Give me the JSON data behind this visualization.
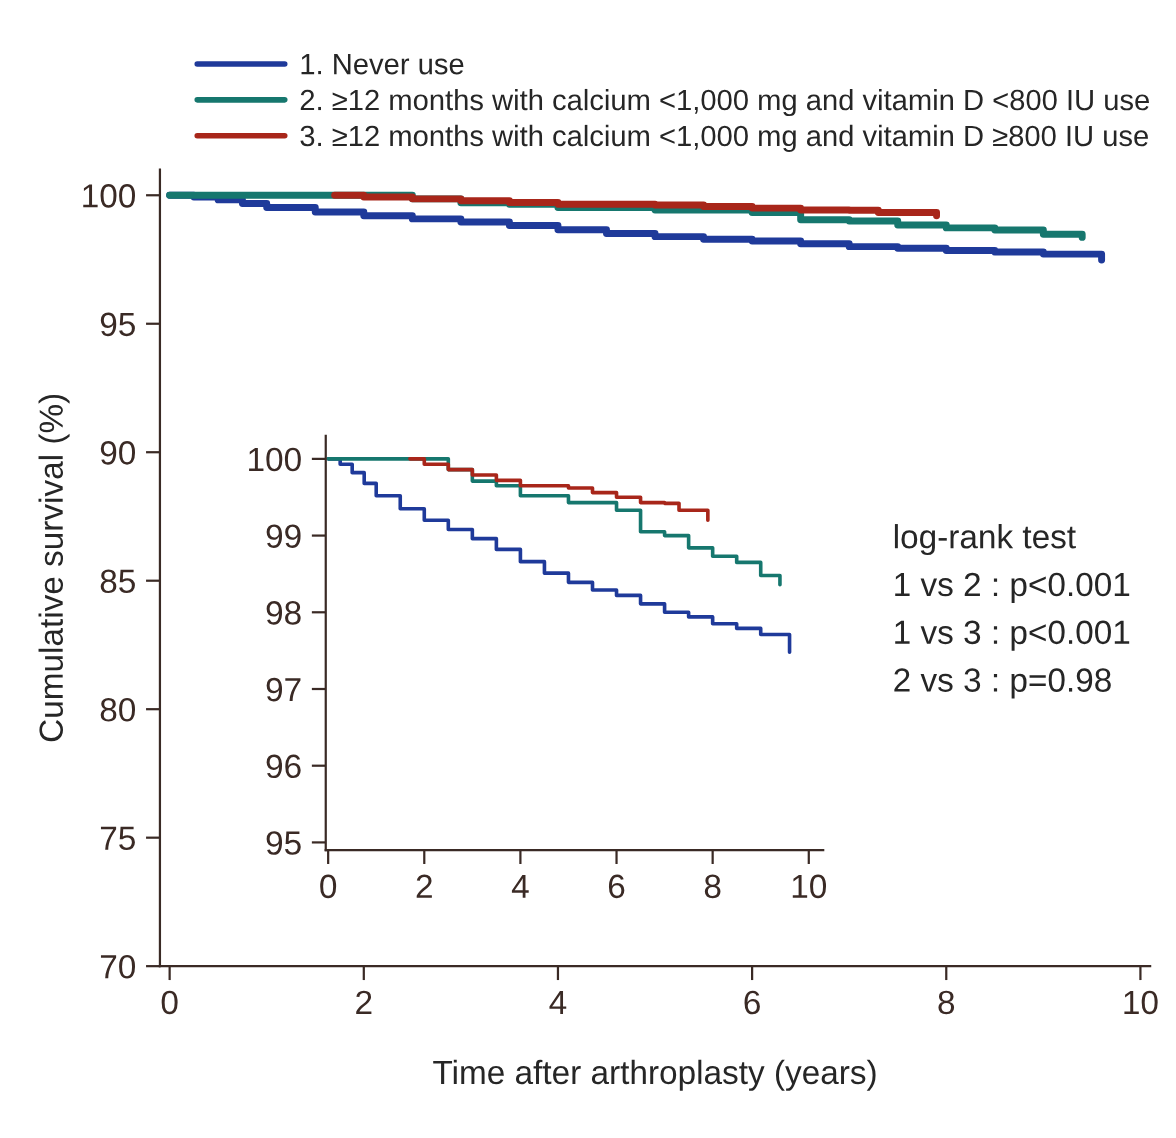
{
  "chart_data": [
    {
      "type": "step",
      "xlabel": "Time after arthroplasty (years)",
      "ylabel": "Cumulative survival (%)",
      "xlim": [
        -0.1,
        10.1
      ],
      "ylim": [
        70,
        101
      ],
      "xticks": [
        0,
        2,
        4,
        6,
        8,
        10
      ],
      "yticks": [
        70,
        75,
        80,
        85,
        90,
        95,
        100
      ],
      "grid": false,
      "legend": "top",
      "marker": "none",
      "line_style": "solid",
      "annotations": [
        "log-rank test",
        "1 vs 2 : p<0.001",
        "1 vs 3 : p<0.001",
        "2 vs 3 : p=0.98"
      ],
      "series": [
        {
          "name": "1. Never use",
          "color": "#1f3a9a",
          "x": [
            0,
            0.25,
            0.5,
            0.75,
            1,
            1.5,
            2,
            2.5,
            3,
            3.5,
            4,
            4.5,
            5,
            5.5,
            6,
            6.5,
            7,
            7.5,
            8,
            8.5,
            9,
            9.6
          ],
          "values": [
            100,
            99.93,
            99.82,
            99.68,
            99.52,
            99.35,
            99.2,
            99.08,
            98.96,
            98.82,
            98.66,
            98.51,
            98.39,
            98.29,
            98.22,
            98.11,
            98.0,
            97.94,
            97.85,
            97.79,
            97.71,
            97.48
          ]
        },
        {
          "name": "2. ≥12 months with calcium <1,000 mg and vitamin D <800 IU use",
          "color": "#16776e",
          "x": [
            0,
            2,
            2.5,
            3,
            3.5,
            4,
            5,
            6,
            6.5,
            7,
            7.5,
            8,
            8.5,
            9,
            9.4
          ],
          "values": [
            100,
            100,
            99.86,
            99.71,
            99.65,
            99.52,
            99.43,
            99.33,
            99.05,
            99.0,
            98.84,
            98.73,
            98.65,
            98.48,
            98.36
          ]
        },
        {
          "name": "3. ≥12 months with calcium <1,000 mg and vitamin D ≥800 IU use",
          "color": "#a8261a",
          "x": [
            1.7,
            2,
            2.5,
            3,
            3.5,
            4,
            5,
            5.5,
            6,
            6.5,
            7,
            7.3,
            7.9
          ],
          "values": [
            100,
            99.93,
            99.86,
            99.79,
            99.72,
            99.65,
            99.62,
            99.56,
            99.5,
            99.43,
            99.42,
            99.33,
            99.2
          ]
        }
      ]
    },
    {
      "type": "step",
      "xlim": [
        -0.05,
        10.3
      ],
      "ylim": [
        94.9,
        100.3
      ],
      "xticks": [
        0,
        2,
        4,
        6,
        8,
        10
      ],
      "yticks": [
        95,
        96,
        97,
        98,
        99,
        100
      ],
      "grid": false,
      "marker": "none",
      "line_style": "solid",
      "series": [
        {
          "color": "#1f3a9a",
          "x": [
            0,
            0.25,
            0.5,
            0.75,
            1,
            1.5,
            2,
            2.5,
            3,
            3.5,
            4,
            4.5,
            5,
            5.5,
            6,
            6.5,
            7,
            7.5,
            8,
            8.5,
            9,
            9.6
          ],
          "values": [
            100,
            99.93,
            99.82,
            99.68,
            99.52,
            99.35,
            99.2,
            99.08,
            98.96,
            98.82,
            98.66,
            98.51,
            98.39,
            98.29,
            98.22,
            98.11,
            98.0,
            97.94,
            97.85,
            97.79,
            97.71,
            97.48
          ]
        },
        {
          "color": "#16776e",
          "x": [
            0,
            2,
            2.5,
            3,
            3.5,
            4,
            5,
            6,
            6.5,
            7,
            7.5,
            8,
            8.5,
            9,
            9.4
          ],
          "values": [
            100,
            100,
            99.86,
            99.71,
            99.65,
            99.52,
            99.43,
            99.33,
            99.05,
            99.0,
            98.84,
            98.73,
            98.65,
            98.48,
            98.36
          ]
        },
        {
          "color": "#a8261a",
          "x": [
            1.7,
            2,
            2.5,
            3,
            3.5,
            4,
            5,
            5.5,
            6,
            6.5,
            7,
            7.3,
            7.9
          ],
          "values": [
            100,
            99.93,
            99.86,
            99.79,
            99.72,
            99.65,
            99.62,
            99.56,
            99.5,
            99.43,
            99.42,
            99.33,
            99.2
          ]
        }
      ]
    }
  ]
}
